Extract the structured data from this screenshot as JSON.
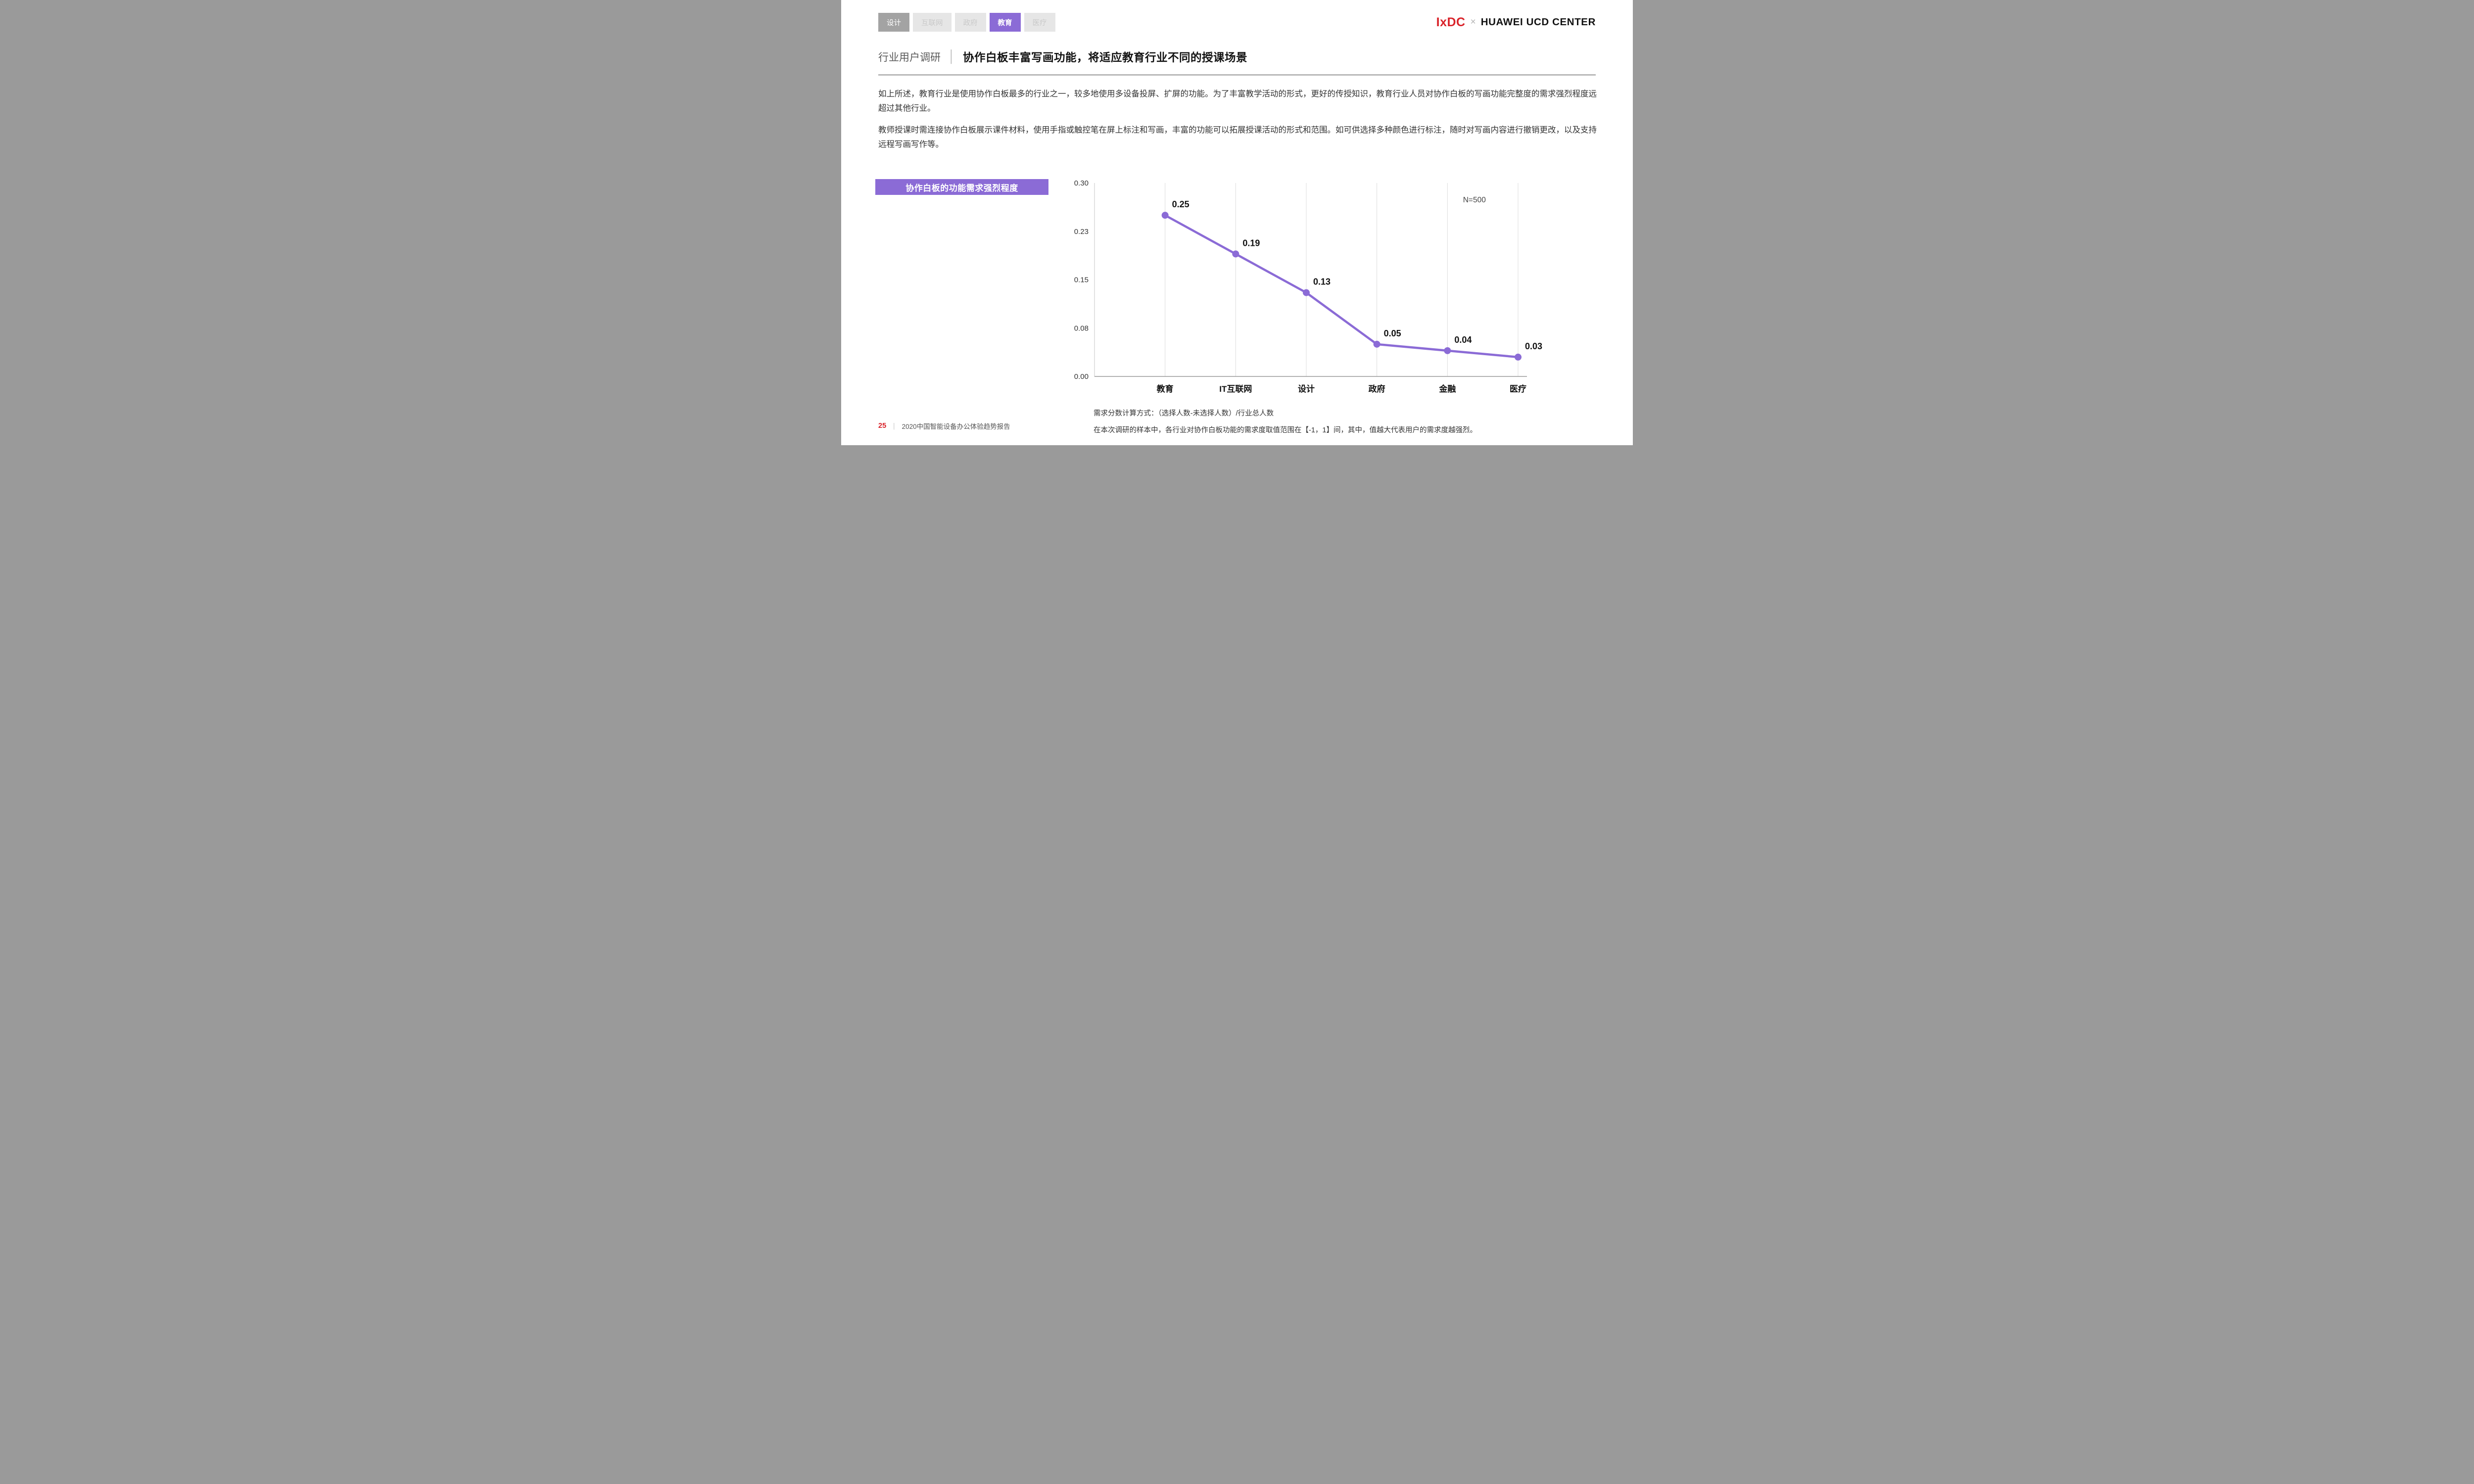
{
  "colors": {
    "accent": "#8b6bd6",
    "brand-red": "#d9232a",
    "tab-dark-bg": "#a3a3a3",
    "tab-light-bg": "#e6e6e6",
    "tab-light-text": "#c9c9c9",
    "grid": "#dcdcdc",
    "text-dark": "#111111"
  },
  "tabs": {
    "items": [
      {
        "label": "设计",
        "state": "inactive-dark"
      },
      {
        "label": "互联网",
        "state": "inactive"
      },
      {
        "label": "政府",
        "state": "inactive"
      },
      {
        "label": "教育",
        "state": "active"
      },
      {
        "label": "医疗",
        "state": "inactive"
      }
    ]
  },
  "logo": {
    "ixdc": "IxDC",
    "separator": "×",
    "partner": "HUAWEI UCD CENTER"
  },
  "header": {
    "section": "行业用户调研",
    "divider": "│",
    "title": "协作白板丰富写画功能，将适应教育行业不同的授课场景"
  },
  "paragraphs": [
    "如上所述，教育行业是使用协作白板最多的行业之一，较多地使用多设备投屏、扩屏的功能。为了丰富教学活动的形式，更好的传授知识，教育行业人员对协作白板的写画功能完整度的需求强烈程度远超过其他行业。",
    "教师授课时需连接协作白板展示课件材料，使用手指或触控笔在屏上标注和写画，丰富的功能可以拓展授课活动的形式和范围。如可供选择多种颜色进行标注，随时对写画内容进行撤销更改，以及支持远程写画写作等。"
  ],
  "chart_label": "协作白板的功能需求强烈程度",
  "chart_data": {
    "type": "line",
    "title": "协作白板的功能需求强烈程度",
    "categories": [
      "教育",
      "IT互联网",
      "设计",
      "政府",
      "金融",
      "医疗"
    ],
    "values": [
      0.25,
      0.19,
      0.13,
      0.05,
      0.04,
      0.03
    ],
    "xlabel": "",
    "ylabel": "",
    "ylim": [
      0,
      0.3
    ],
    "yticks": [
      {
        "value": 0,
        "label": "0.00"
      },
      {
        "value": 0.075,
        "label": "0.08"
      },
      {
        "value": 0.15,
        "label": "0.15"
      },
      {
        "value": 0.225,
        "label": "0.23"
      },
      {
        "value": 0.3,
        "label": "0.30"
      }
    ],
    "annotation": "N=500",
    "grid": "vertical-only",
    "legend": "none",
    "line_color": "#8b6bd6"
  },
  "chart_notes": [
    "需求分数计算方式：（选择人数-未选择人数）/行业总人数",
    "在本次调研的样本中，各行业对协作白板功能的需求度取值范围在【-1，1】间，其中，值越大代表用户的需求度越强烈。"
  ],
  "footer": {
    "page": "25",
    "divider": "｜",
    "report": "2020中国智能设备办公体验趋势报告"
  }
}
